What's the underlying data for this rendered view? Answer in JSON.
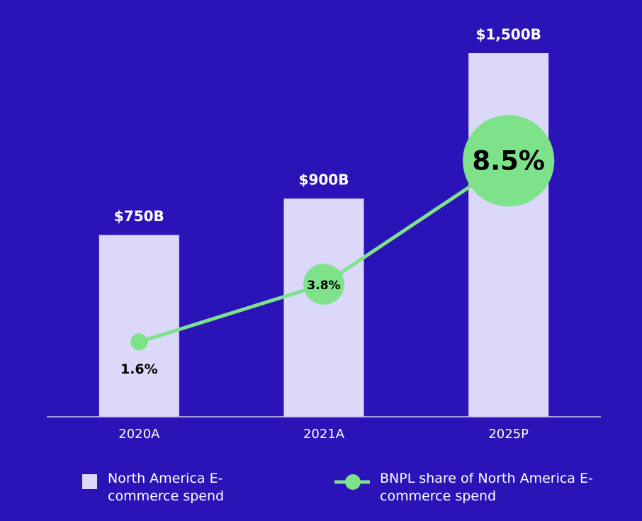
{
  "chart_data": {
    "type": "bar",
    "categories": [
      "2020A",
      "2021A",
      "2025P"
    ],
    "series": [
      {
        "name": "North America E-commerce spend",
        "type": "bar",
        "color": "#dcd8fa",
        "values": [
          750,
          900,
          1500
        ],
        "value_labels": [
          "$750B",
          "$900B",
          "$1,500B"
        ]
      },
      {
        "name": "BNPL share of North America E-commerce spend",
        "type": "line",
        "axis": "y2",
        "color": "#7ee28a",
        "values": [
          1.6,
          3.8,
          8.5
        ],
        "value_labels": [
          "1.6%",
          "3.8%",
          "8.5%"
        ]
      }
    ],
    "ylim": [
      0,
      1500
    ],
    "y2lim": [
      -1.25,
      12.6
    ]
  }
}
